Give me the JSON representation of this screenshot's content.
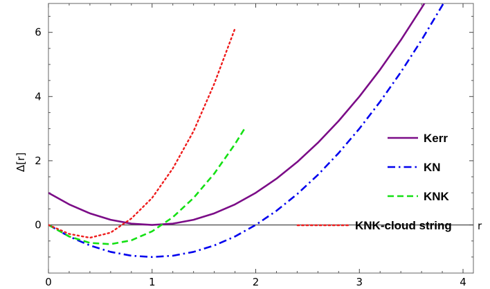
{
  "chart_data": {
    "type": "line",
    "title": "",
    "xlabel": "r",
    "ylabel": "Δ[r]",
    "xlim": [
      0,
      4.1
    ],
    "ylim": [
      -1.5,
      6.9
    ],
    "x_ticks": [
      0,
      1,
      2,
      3,
      4
    ],
    "y_ticks": [
      0,
      2,
      4,
      6
    ],
    "x_tick_labels": [
      "0",
      "1",
      "2",
      "3",
      "4"
    ],
    "y_tick_labels": [
      "0",
      "2",
      "4",
      "6"
    ],
    "grid": false,
    "frame": true,
    "zero_line": true,
    "legend_position": "right",
    "series": [
      {
        "name": "Kerr",
        "color": "#7b0c87",
        "style": "solid",
        "x": [
          0,
          0.2,
          0.4,
          0.6,
          0.8,
          1.0,
          1.2,
          1.4,
          1.6,
          1.8,
          2.0,
          2.2,
          2.4,
          2.6,
          2.8,
          3.0,
          3.2,
          3.4,
          3.6,
          3.65
        ],
        "y": [
          1.0,
          0.64,
          0.36,
          0.16,
          0.04,
          0.0,
          0.04,
          0.16,
          0.36,
          0.64,
          1.0,
          1.44,
          1.96,
          2.56,
          3.24,
          4.0,
          4.84,
          5.76,
          6.76,
          7.02
        ]
      },
      {
        "name": "KN",
        "color": "#0000ee",
        "style": "dashdot",
        "x": [
          0,
          0.2,
          0.4,
          0.6,
          0.8,
          1.0,
          1.2,
          1.4,
          1.6,
          1.8,
          2.0,
          2.2,
          2.4,
          2.6,
          2.8,
          3.0,
          3.2,
          3.4,
          3.6,
          3.8,
          3.85
        ],
        "y": [
          0.0,
          -0.36,
          -0.64,
          -0.84,
          -0.96,
          -1.0,
          -0.96,
          -0.84,
          -0.64,
          -0.36,
          0.0,
          0.44,
          0.96,
          1.56,
          2.24,
          3.0,
          3.84,
          4.76,
          5.76,
          6.84,
          7.12
        ]
      },
      {
        "name": "KNK",
        "color": "#14e014",
        "style": "dashed",
        "x": [
          0,
          0.2,
          0.4,
          0.6,
          0.8,
          1.0,
          1.2,
          1.4,
          1.6,
          1.8,
          1.9
        ],
        "y": [
          0.0,
          -0.36,
          -0.56,
          -0.6,
          -0.48,
          -0.2,
          0.24,
          0.84,
          1.6,
          2.52,
          3.04
        ]
      },
      {
        "name": "KNK-cloud string",
        "color": "#ee1c1c",
        "style": "dotted",
        "x": [
          0,
          0.2,
          0.4,
          0.6,
          0.8,
          1.0,
          1.2,
          1.4,
          1.6,
          1.8
        ],
        "y": [
          0.0,
          -0.28,
          -0.4,
          -0.24,
          0.2,
          0.84,
          1.76,
          2.92,
          4.4,
          6.12
        ]
      }
    ]
  }
}
